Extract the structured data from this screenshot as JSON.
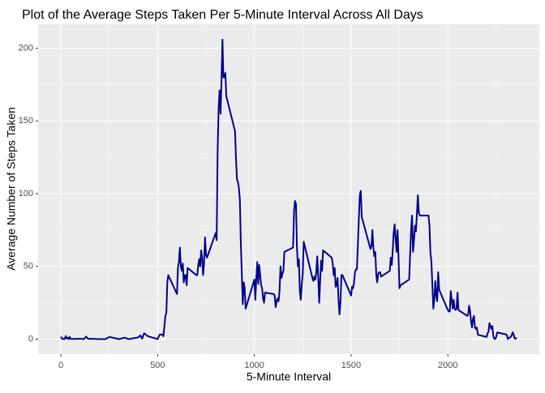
{
  "chart_data": {
    "type": "line",
    "title": "Plot of the Average Steps Taken Per 5-Minute Interval Across All Days",
    "x_label": "5-Minute Interval",
    "y_label": "Average Number of Steps Taken",
    "x": [
      0,
      5,
      10,
      15,
      20,
      25,
      30,
      35,
      40,
      45,
      50,
      55,
      100,
      110,
      120,
      130,
      140,
      150,
      200,
      230,
      250,
      300,
      330,
      350,
      400,
      410,
      420,
      430,
      440,
      450,
      500,
      510,
      520,
      530,
      540,
      545,
      550,
      555,
      600,
      605,
      610,
      615,
      620,
      625,
      630,
      635,
      640,
      645,
      650,
      655,
      700,
      705,
      710,
      715,
      720,
      725,
      730,
      735,
      740,
      745,
      750,
      755,
      800,
      805,
      810,
      815,
      820,
      825,
      830,
      835,
      840,
      845,
      850,
      855,
      900,
      905,
      910,
      915,
      920,
      925,
      930,
      935,
      940,
      945,
      950,
      955,
      1000,
      1005,
      1010,
      1015,
      1020,
      1025,
      1030,
      1035,
      1040,
      1045,
      1050,
      1055,
      1100,
      1105,
      1110,
      1115,
      1120,
      1125,
      1130,
      1135,
      1140,
      1145,
      1150,
      1155,
      1200,
      1205,
      1210,
      1215,
      1220,
      1225,
      1230,
      1235,
      1240,
      1245,
      1250,
      1255,
      1300,
      1305,
      1310,
      1315,
      1320,
      1325,
      1330,
      1335,
      1340,
      1345,
      1350,
      1355,
      1400,
      1405,
      1410,
      1415,
      1420,
      1425,
      1430,
      1435,
      1440,
      1445,
      1450,
      1455,
      1500,
      1505,
      1510,
      1515,
      1520,
      1525,
      1530,
      1535,
      1540,
      1545,
      1550,
      1555,
      1600,
      1605,
      1610,
      1615,
      1620,
      1625,
      1630,
      1635,
      1640,
      1645,
      1650,
      1655,
      1700,
      1705,
      1710,
      1715,
      1720,
      1725,
      1730,
      1735,
      1740,
      1745,
      1750,
      1755,
      1800,
      1805,
      1810,
      1815,
      1820,
      1825,
      1830,
      1835,
      1840,
      1845,
      1850,
      1855,
      1900,
      1905,
      1910,
      1915,
      1920,
      1925,
      1930,
      1935,
      1940,
      1945,
      1950,
      1955,
      2000,
      2005,
      2010,
      2015,
      2020,
      2025,
      2030,
      2035,
      2040,
      2045,
      2050,
      2055,
      2100,
      2105,
      2110,
      2115,
      2120,
      2125,
      2130,
      2135,
      2140,
      2145,
      2150,
      2155,
      2200,
      2205,
      2210,
      2215,
      2220,
      2225,
      2230,
      2235,
      2240,
      2245,
      2250,
      2255,
      2300,
      2305,
      2310,
      2315,
      2320,
      2325,
      2330,
      2335,
      2340,
      2345,
      2350,
      2355
    ],
    "series": [
      {
        "color": "#00008B",
        "values": [
          1.7,
          0.3,
          0.1,
          0.2,
          0.1,
          2.1,
          0.5,
          0.9,
          0,
          1.5,
          0.3,
          0.1,
          0.3,
          0.2,
          0,
          1.8,
          0.2,
          0.3,
          0,
          0,
          1.5,
          0,
          1,
          0,
          1.2,
          2.6,
          0.3,
          4,
          3,
          2,
          0,
          3,
          3.3,
          2,
          16,
          18,
          39,
          44,
          31,
          49,
          53,
          63,
          50,
          47,
          52,
          39,
          44,
          44,
          37,
          49,
          44,
          44,
          51,
          55,
          50,
          61,
          56,
          44,
          52,
          70,
          58,
          56,
          73,
          68,
          129,
          158,
          171,
          155,
          177,
          206,
          180,
          180,
          183,
          167,
          143,
          124,
          110,
          108,
          104,
          96,
          66,
          45,
          24,
          39,
          35,
          21,
          41,
          27,
          42,
          53,
          38,
          51,
          44,
          37,
          35,
          28,
          25,
          32,
          31,
          30,
          22,
          26,
          28,
          26,
          33,
          50,
          42,
          45,
          47,
          60,
          63,
          88,
          95,
          93,
          63,
          50,
          55,
          33,
          27,
          38,
          45,
          67,
          42,
          40,
          43,
          41,
          46,
          57,
          43,
          25,
          40,
          54,
          47,
          61,
          56,
          52,
          44,
          49,
          36,
          37,
          42,
          27,
          17,
          26,
          44,
          44,
          30,
          36,
          35,
          39,
          46,
          48,
          48,
          65,
          83,
          99,
          102,
          84,
          62,
          64,
          75,
          63,
          57,
          60,
          44,
          39,
          45,
          46,
          46,
          43,
          47,
          56,
          51,
          61,
          73,
          79,
          69,
          60,
          75,
          57,
          35,
          37,
          41,
          58,
          75,
          85,
          60,
          68,
          78,
          74,
          86,
          99,
          87,
          85,
          85,
          78,
          59,
          53,
          37,
          21,
          27,
          40,
          30,
          26,
          46,
          34,
          20,
          19,
          19,
          33,
          27,
          21,
          27,
          21,
          20,
          21,
          32,
          20,
          16,
          17,
          23,
          19,
          12,
          8,
          14,
          16,
          8,
          7,
          8,
          3,
          1.5,
          4,
          5,
          11,
          9,
          7,
          9,
          2,
          0.3,
          0.1,
          1.6,
          4.6,
          3.3,
          2.8,
          0,
          0.8,
          1,
          1.6,
          2.6,
          4.7,
          3.3,
          0.6,
          0.2,
          1.1
        ]
      }
    ],
    "xlim": [
      -117.75,
      2472.75
    ],
    "xticks": [
      0,
      500,
      1000,
      1500,
      2000
    ],
    "xminor": [
      250,
      750,
      1250,
      1750,
      2250
    ],
    "ylim": [
      -10.3,
      216.5
    ],
    "yticks": [
      0,
      50,
      100,
      150,
      200
    ],
    "yminor": [
      25,
      75,
      125,
      175
    ],
    "grid": true
  }
}
